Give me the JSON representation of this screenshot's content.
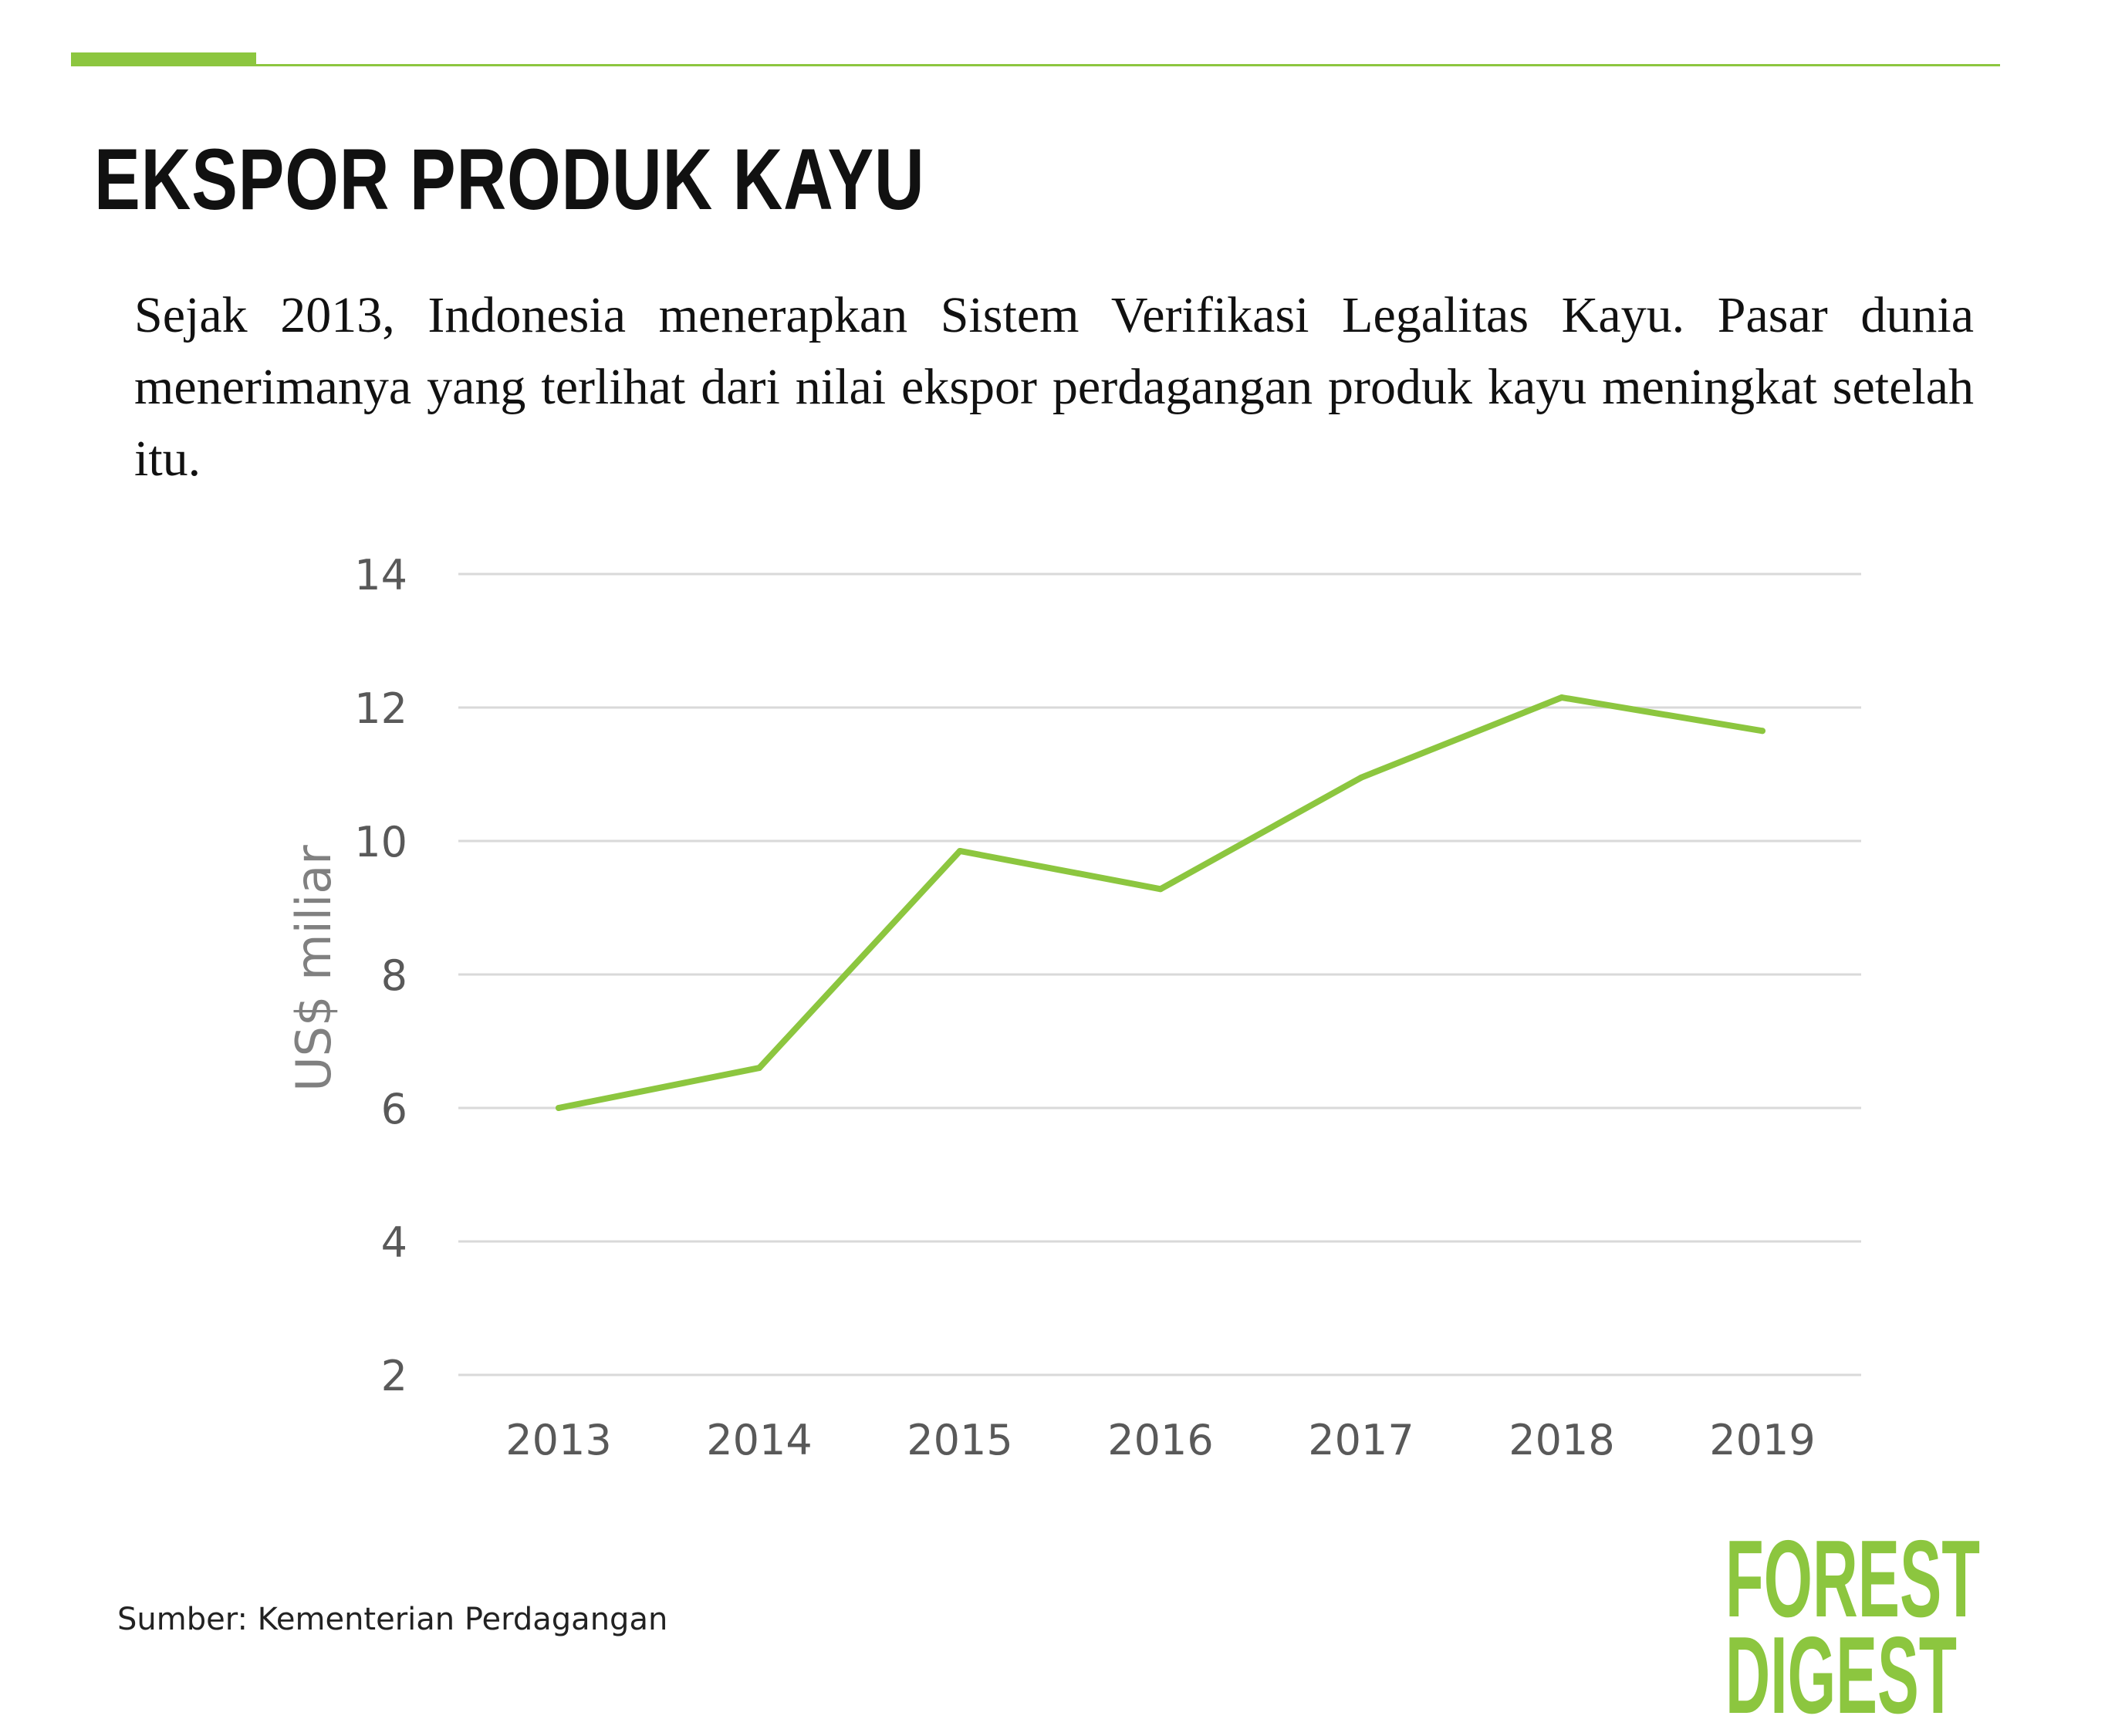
{
  "header": {
    "title": "EKSPOR PRODUK KAYU",
    "intro": "Sejak 2013, Indonesia menerapkan Sistem Verifikasi Legalitas Kayu. Pasar dunia menerimanya yang terlihat dari nilai ekspor perdagangan produk kayu meningkat setelah itu."
  },
  "chart_data": {
    "type": "line",
    "title": "",
    "xlabel": "",
    "ylabel": "US$ miliar",
    "categories": [
      "2013",
      "2014",
      "2015",
      "2016",
      "2017",
      "2018",
      "2019"
    ],
    "series": [
      {
        "values": [
          6.0,
          6.6,
          9.85,
          9.28,
          10.95,
          12.15,
          11.65
        ]
      }
    ],
    "ylim": [
      2,
      14
    ],
    "yticks": [
      2,
      4,
      6,
      8,
      10,
      12,
      14
    ],
    "grid": "horizontal",
    "legend": "none",
    "colors": {
      "line": "#8cc63f",
      "grid": "#d9d9d9",
      "tick_text": "#595959",
      "label_text": "#808080"
    }
  },
  "footer": {
    "source": "Sumber: Kementerian Perdagangan",
    "logo": {
      "line1": "FOREST",
      "line2": "DIGEST",
      "color": "#8cc63f"
    }
  }
}
